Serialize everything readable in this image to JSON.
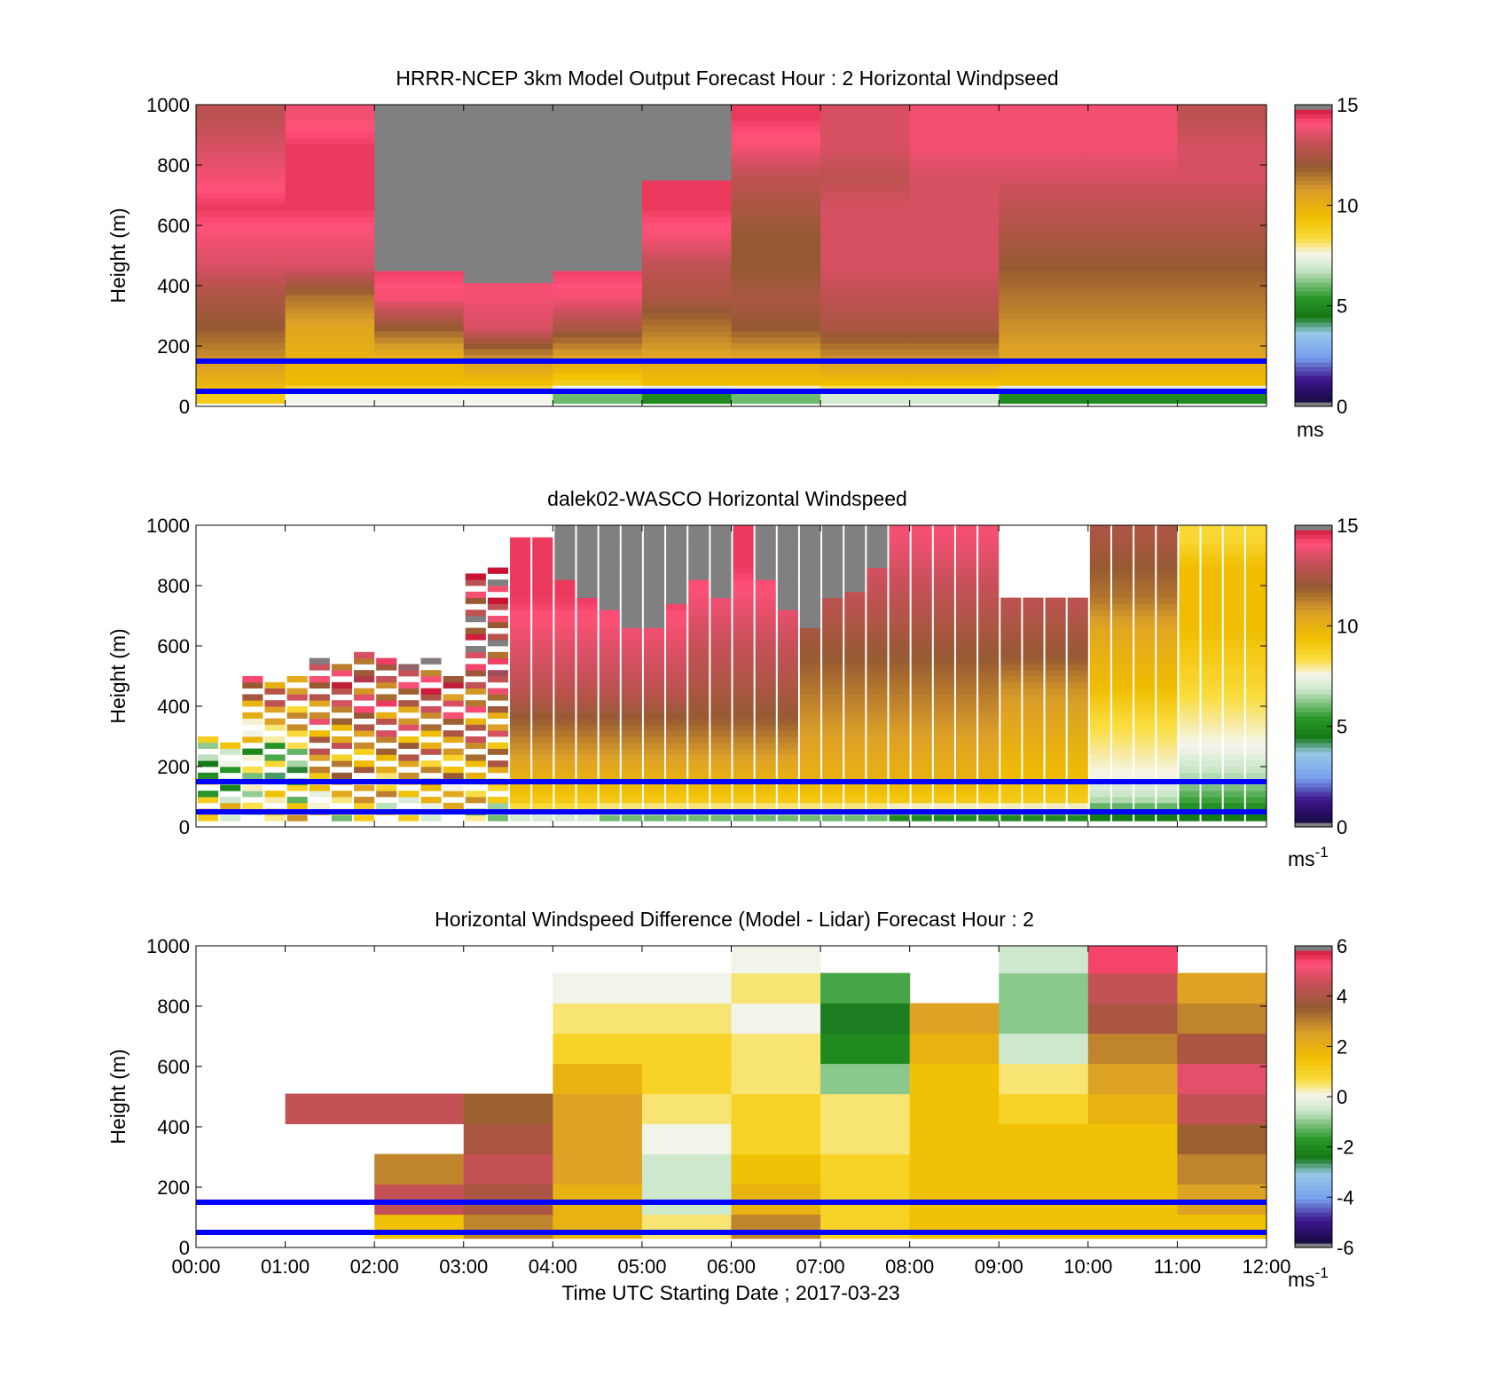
{
  "chart_data": [
    {
      "type": "heatmap",
      "title": "HRRR-NCEP 3km Model Output   Forecast Hour : 2 Horizontal Windpseed",
      "ylabel": "Height (m)",
      "xlabel": "",
      "ylim": [
        0,
        1000
      ],
      "yticks": [
        0,
        200,
        400,
        600,
        800,
        1000
      ],
      "ytick_labels": [
        "0",
        "200",
        "400",
        "600",
        "800",
        "1000"
      ],
      "xlim_hours": [
        0,
        12
      ],
      "xtick_labels": [],
      "colorbar": {
        "min": 0,
        "max": 15,
        "ticks": [
          0,
          5,
          10,
          15
        ],
        "tick_labels": [
          "0",
          "5",
          "10",
          "15"
        ],
        "unit_label": "ms",
        "unit_sup": "",
        "palette": "wind"
      },
      "reference_lines_m": [
        50,
        150
      ],
      "reference_line_color": "#0000ff",
      "no_data_above": [
        0,
        0,
        440,
        390,
        440,
        790,
        0,
        0,
        0,
        0,
        0,
        0
      ],
      "x_hours": [
        0.5,
        1.5,
        2.5,
        3.5,
        4.5,
        5.5,
        6.5,
        7.5,
        8.5,
        9.5,
        10.5,
        11.5
      ],
      "profiles_height_m": [
        30,
        70,
        150,
        250,
        350,
        450,
        550,
        650,
        750,
        850,
        950
      ],
      "profiles_ms": [
        [
          9,
          10,
          11,
          12,
          12.5,
          13.5,
          14,
          14.5,
          14,
          13.5,
          13
        ],
        [
          7.5,
          9.5,
          10,
          10.5,
          11.5,
          13.5,
          14,
          14.5,
          14.5,
          14.5,
          14
        ],
        [
          7.5,
          9.5,
          10,
          12,
          14,
          14.5,
          null,
          null,
          null,
          null,
          null
        ],
        [
          7.5,
          9.5,
          11,
          13.5,
          14,
          null,
          null,
          null,
          null,
          null,
          null
        ],
        [
          6,
          9,
          10.5,
          12.5,
          14,
          14.5,
          null,
          null,
          null,
          null,
          null
        ],
        [
          5,
          9.5,
          10.5,
          11.5,
          12.5,
          13,
          14,
          14.5,
          null,
          null,
          null
        ],
        [
          6,
          9.5,
          10.5,
          12,
          12.5,
          12,
          12,
          12.5,
          13,
          14,
          14.5
        ],
        [
          7,
          9.5,
          11,
          12.5,
          13,
          13.5,
          13.5,
          13.5,
          13,
          13.5,
          13.5
        ],
        [
          7,
          9.5,
          11,
          12.5,
          13,
          13.5,
          13.5,
          13.5,
          13.5,
          14,
          14
        ],
        [
          5,
          9.5,
          10.5,
          11,
          11.5,
          12,
          12.5,
          13,
          13.5,
          14,
          14
        ],
        [
          5,
          9.5,
          10.5,
          11,
          11.5,
          12,
          12.5,
          13,
          13.5,
          14,
          14
        ],
        [
          5,
          9.5,
          10.5,
          11,
          11.5,
          12,
          12.5,
          13,
          13.5,
          13.5,
          13
        ]
      ]
    },
    {
      "type": "heatmap",
      "title": "dalek02-WASCO  Horizontal Windspeed",
      "ylabel": "Height (m)",
      "xlabel": "",
      "ylim": [
        0,
        1000
      ],
      "yticks": [
        0,
        200,
        400,
        600,
        800,
        1000
      ],
      "ytick_labels": [
        "0",
        "200",
        "400",
        "600",
        "800",
        "1000"
      ],
      "xlim_hours": [
        0,
        12
      ],
      "xtick_labels": [],
      "colorbar": {
        "min": 0,
        "max": 15,
        "ticks": [
          0,
          5,
          10,
          15
        ],
        "tick_labels": [
          "0",
          "5",
          "10",
          "15"
        ],
        "unit_label": "ms",
        "unit_sup": "-1",
        "palette": "wind"
      },
      "reference_lines_m": [
        50,
        150
      ],
      "reference_line_color": "#0000ff",
      "profiles_height_m": [
        25,
        75,
        150,
        250,
        350,
        450,
        550,
        650,
        750,
        850,
        950
      ],
      "profile_interval_hours": 0.25,
      "coverage_top_m": [
        0.3,
        0.3,
        0.5,
        0.5,
        0.5,
        0.55,
        0.55,
        0.6,
        0.55,
        0.55,
        0.55,
        0.5,
        0.85,
        0.85,
        0.95,
        0.95,
        1.0,
        1.0,
        1.0,
        1.0,
        1.0,
        1.0,
        1.0,
        1.0,
        1.0,
        1.0,
        1.0,
        1.0,
        1.0,
        1.0,
        1.0,
        1.0,
        1.0,
        1.0,
        1.0,
        1.0,
        0.75,
        0.75,
        0.75,
        0.75,
        1.0,
        1.0,
        1.0,
        1.0,
        1.0,
        1.0,
        1.0,
        1.0
      ],
      "gray_above_m": [
        9999,
        9999,
        9999,
        9999,
        9999,
        9999,
        9999,
        9999,
        9999,
        9999,
        9999,
        9999,
        9999,
        9999,
        9999,
        9999,
        800,
        750,
        700,
        650,
        650,
        720,
        800,
        750,
        9999,
        800,
        700,
        650,
        750,
        760,
        850,
        9999,
        9999,
        9999,
        9999,
        9999,
        9999,
        9999,
        9999,
        9999,
        9999,
        9999,
        9999,
        9999,
        9999,
        9999,
        9999,
        9999
      ],
      "profiles_ms": [
        [
          9,
          8,
          6,
          7,
          10,
          12,
          13,
          13.5,
          13.5,
          13,
          12.5
        ],
        [
          8,
          9,
          10,
          11,
          12,
          13,
          13.5,
          13.5,
          13.5,
          13.5,
          13.5
        ],
        [
          7,
          9,
          10,
          11,
          12,
          13,
          13.5,
          14,
          14,
          14,
          14
        ],
        [
          7,
          9,
          10,
          11,
          12,
          13,
          13.5,
          14,
          14.5,
          14.5,
          14.5
        ],
        [
          6,
          9,
          10,
          11,
          12,
          13,
          13.5,
          14,
          14.5,
          14.5,
          14.5
        ],
        [
          6,
          9,
          10,
          11,
          12,
          12.5,
          13,
          13.5,
          14,
          14.5,
          14.5
        ],
        [
          6,
          9,
          10,
          10.5,
          11,
          11.5,
          12,
          12.5,
          13,
          13.5,
          14
        ],
        [
          5,
          9,
          10,
          10.5,
          11,
          11.5,
          12,
          12.5,
          13,
          13.5,
          14
        ],
        [
          5,
          9,
          9.5,
          10,
          10.5,
          11,
          12,
          12.5,
          13,
          13.5,
          14
        ],
        [
          6,
          8,
          9,
          9.5,
          10,
          11,
          11.5,
          12,
          13,
          13.5,
          14
        ],
        [
          6,
          7,
          8,
          9,
          9.5,
          10,
          10.5,
          11,
          11,
          11,
          10
        ]
      ]
    },
    {
      "type": "heatmap",
      "title": "Horizontal Windspeed Difference (Model - Lidar) Forecast Hour : 2",
      "ylabel": "Height (m)",
      "xlabel": "Time UTC  Starting Date ; 2017-03-23",
      "ylim": [
        0,
        1000
      ],
      "yticks": [
        0,
        200,
        400,
        600,
        800,
        1000
      ],
      "ytick_labels": [
        "0",
        "200",
        "400",
        "600",
        "800",
        "1000"
      ],
      "xlim_hours": [
        0,
        12
      ],
      "xtick_labels": [
        "00:00",
        "01:00",
        "02:00",
        "03:00",
        "04:00",
        "05:00",
        "06:00",
        "07:00",
        "08:00",
        "09:00",
        "10:00",
        "11:00",
        "12:00"
      ],
      "colorbar": {
        "min": -6,
        "max": 6,
        "ticks": [
          -6,
          -4,
          -2,
          0,
          2,
          4,
          6
        ],
        "tick_labels": [
          "-6",
          "-4",
          "-2",
          "0",
          "2",
          "4",
          "6"
        ],
        "unit_label": "ms",
        "unit_sup": "-1",
        "palette": "diff"
      },
      "reference_lines_m": [
        50,
        150
      ],
      "reference_line_color": "#0000ff",
      "x_hours": [
        0.5,
        1.5,
        2.5,
        3.5,
        4.5,
        5.5,
        6.5,
        7.5,
        8.5,
        9.5,
        10.5,
        11.5
      ],
      "profiles_height_m": [
        50,
        150,
        250,
        350,
        450,
        550,
        650,
        750,
        850,
        950
      ],
      "profiles_diff_ms": [
        [
          null,
          null,
          null,
          null,
          null,
          null,
          null,
          null,
          null,
          null
        ],
        [
          null,
          null,
          null,
          null,
          4.5,
          null,
          null,
          null,
          null,
          null
        ],
        [
          1.5,
          4.5,
          3,
          null,
          4.5,
          null,
          null,
          null,
          null,
          null
        ],
        [
          3,
          4,
          4.5,
          4,
          3.5,
          null,
          null,
          null,
          null,
          null
        ],
        [
          2,
          2,
          2.5,
          2.5,
          2.5,
          2,
          1,
          0.5,
          0,
          null
        ],
        [
          0.5,
          -0.5,
          -0.5,
          0,
          0.5,
          1,
          1,
          0.5,
          0,
          null
        ],
        [
          3,
          2,
          1.5,
          1,
          1,
          0.5,
          0.5,
          0,
          0.5,
          0
        ],
        [
          1,
          1,
          1,
          0.5,
          0.5,
          -1,
          -2,
          -2.5,
          -1.5,
          null
        ],
        [
          1.5,
          1.5,
          1.5,
          1.5,
          1.5,
          1.5,
          2,
          2.5,
          null,
          null
        ],
        [
          1.5,
          1.5,
          1.5,
          1.5,
          1,
          0.5,
          -0.5,
          -1,
          -1,
          -0.5
        ],
        [
          1.5,
          1.5,
          1.5,
          1.5,
          2,
          2.5,
          3,
          4,
          4.5,
          5.5
        ],
        [
          1.5,
          2.5,
          3,
          3.5,
          4.5,
          5,
          4,
          3,
          2.5,
          null
        ]
      ]
    }
  ]
}
